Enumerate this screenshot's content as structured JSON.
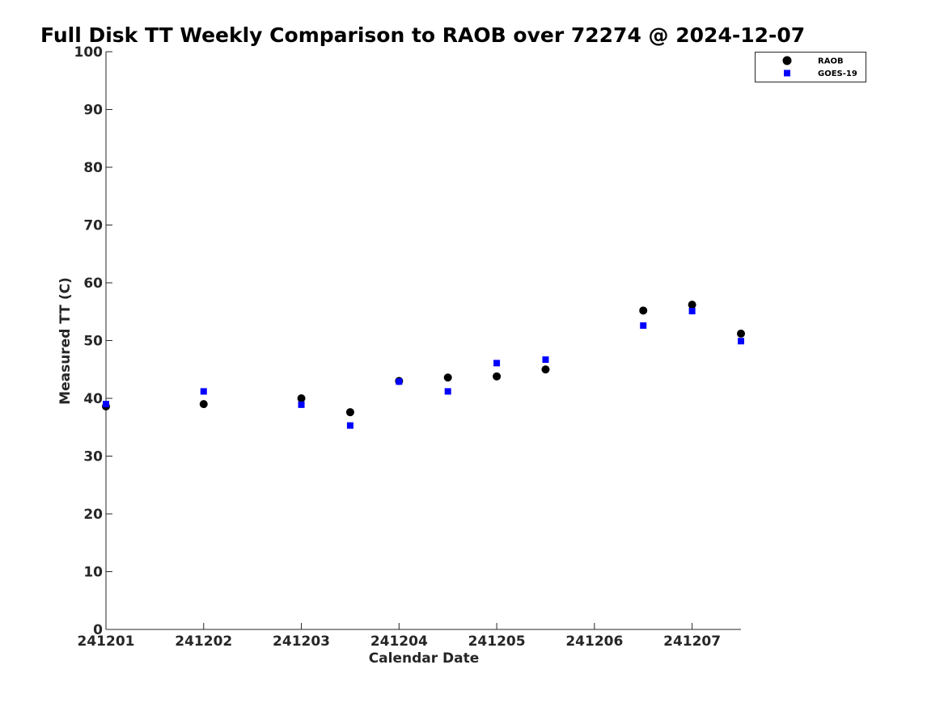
{
  "chart_data": {
    "type": "scatter",
    "title": "Full Disk TT Weekly Comparison to RAOB over 72274 @ 2024-12-07",
    "xlabel": "Calendar Date",
    "ylabel": "Measured TT (C)",
    "xlim": [
      241201,
      241207.5
    ],
    "ylim": [
      0,
      100
    ],
    "x_ticks": [
      241201,
      241202,
      241203,
      241204,
      241205,
      241206,
      241207
    ],
    "x_tick_labels": [
      "241201",
      "241202",
      "241203",
      "241204",
      "241205",
      "241206",
      "241207"
    ],
    "y_ticks": [
      0,
      10,
      20,
      30,
      40,
      50,
      60,
      70,
      80,
      90,
      100
    ],
    "y_tick_labels": [
      "0",
      "10",
      "20",
      "30",
      "40",
      "50",
      "60",
      "70",
      "80",
      "90",
      "100"
    ],
    "grid": false,
    "legend_position": "top-right",
    "series": [
      {
        "name": "RAOB",
        "marker": "circle",
        "color": "#000000",
        "x": [
          241201,
          241202,
          241203,
          241203.5,
          241204,
          241204.5,
          241205,
          241205.5,
          241206.5,
          241207,
          241207.5
        ],
        "y": [
          38.6,
          39.0,
          40.0,
          37.6,
          43.0,
          43.6,
          43.8,
          45.0,
          55.2,
          56.2,
          51.2
        ]
      },
      {
        "name": "GOES-19",
        "marker": "square",
        "color": "#0000ff",
        "x": [
          241201,
          241202,
          241203,
          241203.5,
          241204,
          241204.5,
          241205,
          241205.5,
          241206.5,
          241207,
          241207.5
        ],
        "y": [
          39.0,
          41.2,
          38.9,
          35.3,
          42.9,
          41.2,
          46.1,
          46.7,
          52.6,
          55.1,
          49.9
        ]
      }
    ]
  }
}
